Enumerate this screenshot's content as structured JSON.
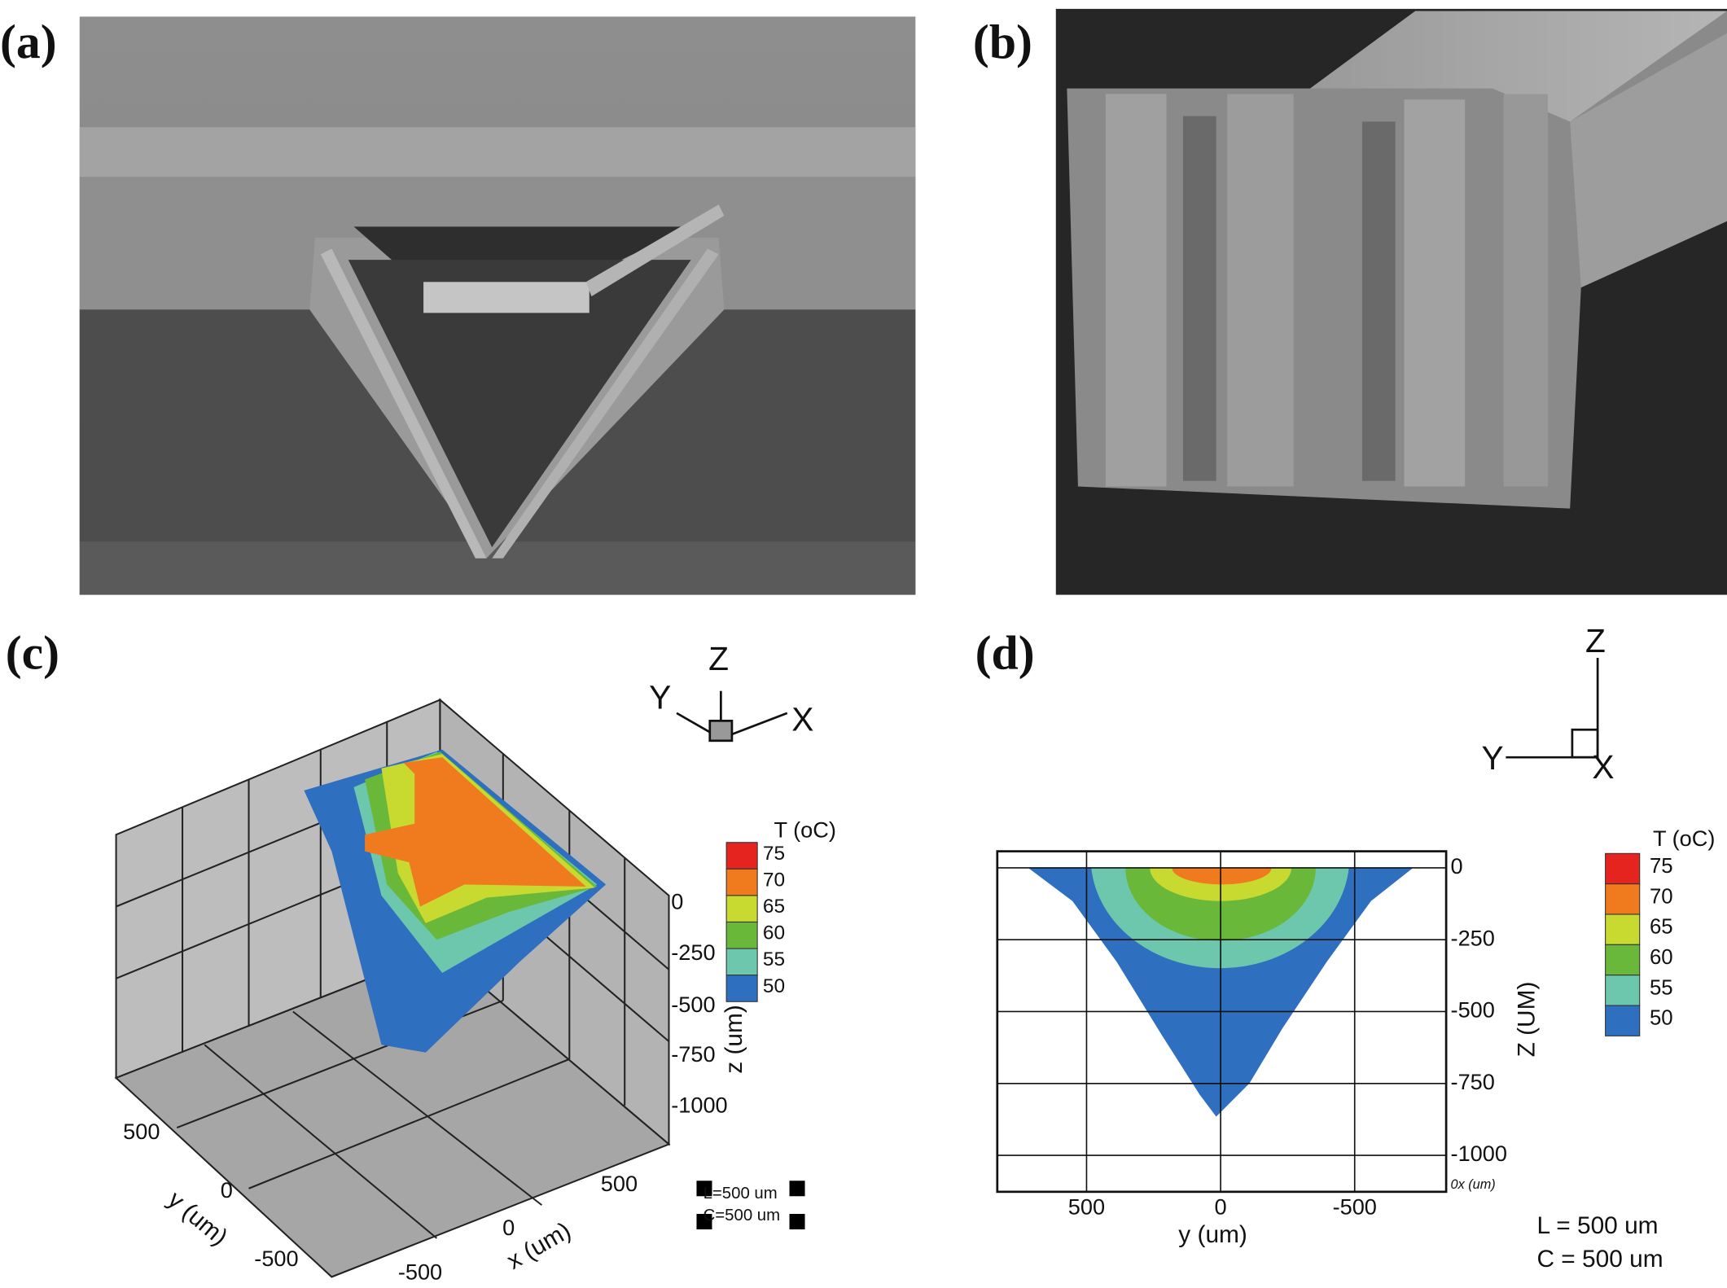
{
  "panels": [
    {
      "label": "(a)"
    },
    {
      "label": "(b)"
    },
    {
      "label": "(c)",
      "triad": {
        "z": "Z",
        "y": "Y",
        "x": "X"
      },
      "colorbar": {
        "title": "T (oC)",
        "levels": [
          75,
          70,
          65,
          60,
          55,
          50
        ],
        "colors": [
          "#e5231f",
          "#f07a1e",
          "#c8d92f",
          "#6ab83a",
          "#6cc7ad",
          "#2f6fc0"
        ]
      },
      "z_axis": {
        "label": "z (um)",
        "ticks": [
          0,
          -250,
          -500,
          -750,
          -1000
        ]
      },
      "y_axis": {
        "label": "y (um)",
        "ticks": [
          500,
          0,
          -500
        ]
      },
      "x_axis": {
        "label": "x (um)",
        "ticks": [
          500,
          0,
          -500
        ]
      },
      "notes": [
        "L=500 um",
        "C=500 um"
      ]
    },
    {
      "label": "(d)",
      "triad": {
        "z": "Z",
        "y": "Y",
        "x": "X"
      },
      "colorbar": {
        "title": "T (oC)",
        "levels": [
          75,
          70,
          65,
          60,
          55,
          50
        ],
        "colors": [
          "#e5231f",
          "#f07a1e",
          "#c8d92f",
          "#6ab83a",
          "#6cc7ad",
          "#2f6fc0"
        ]
      },
      "z_axis": {
        "label": "Z (UM)",
        "ticks": [
          0,
          -250,
          -500,
          -750,
          -1000
        ]
      },
      "y_axis": {
        "label": "y (um)",
        "ticks": [
          500,
          0,
          -500
        ]
      },
      "corner_note": "0x (um)",
      "notes": [
        "L =  500 um",
        "C = 500 um"
      ]
    }
  ]
}
